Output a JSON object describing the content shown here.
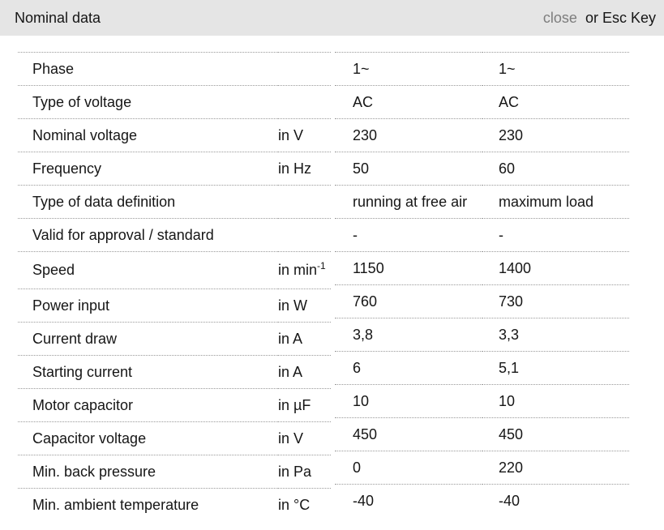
{
  "header": {
    "title": "Nominal data",
    "close_label": "close",
    "close_suffix": "or Esc Key"
  },
  "colors": {
    "header_bg": "#e5e5e5",
    "text": "#161616",
    "muted_text": "#7d7d7d",
    "divider": "#999999",
    "page_bg": "#ffffff"
  },
  "table": {
    "rows": [
      {
        "label": "Phase",
        "unit": "",
        "unit_sup": "",
        "values": [
          "1~",
          "1~"
        ]
      },
      {
        "label": "Type of voltage",
        "unit": "",
        "unit_sup": "",
        "values": [
          "AC",
          "AC"
        ]
      },
      {
        "label": "Nominal voltage",
        "unit": "in V",
        "unit_sup": "",
        "values": [
          "230",
          "230"
        ]
      },
      {
        "label": "Frequency",
        "unit": "in Hz",
        "unit_sup": "",
        "values": [
          "50",
          "60"
        ]
      },
      {
        "label": "Type of data definition",
        "unit": "",
        "unit_sup": "",
        "values": [
          "running at free air",
          "maximum load"
        ]
      },
      {
        "label": "Valid for approval / standard",
        "unit": "",
        "unit_sup": "",
        "values": [
          "-",
          "-"
        ]
      },
      {
        "label": "Speed",
        "unit": "in min",
        "unit_sup": "-1",
        "values": [
          "1150",
          "1400"
        ]
      },
      {
        "label": "Power input",
        "unit": "in W",
        "unit_sup": "",
        "values": [
          "760",
          "730"
        ]
      },
      {
        "label": "Current draw",
        "unit": "in A",
        "unit_sup": "",
        "values": [
          "3,8",
          "3,3"
        ]
      },
      {
        "label": "Starting current",
        "unit": "in A",
        "unit_sup": "",
        "values": [
          "6",
          "5,1"
        ]
      },
      {
        "label": "Motor capacitor",
        "unit": "in µF",
        "unit_sup": "",
        "values": [
          "10",
          "10"
        ]
      },
      {
        "label": "Capacitor voltage",
        "unit": "in V",
        "unit_sup": "",
        "values": [
          "450",
          "450"
        ]
      },
      {
        "label": "Min. back pressure",
        "unit": "in Pa",
        "unit_sup": "",
        "values": [
          "0",
          "220"
        ]
      },
      {
        "label": "Min. ambient temperature",
        "unit": "in °C",
        "unit_sup": "",
        "values": [
          "-40",
          "-40"
        ]
      }
    ]
  }
}
